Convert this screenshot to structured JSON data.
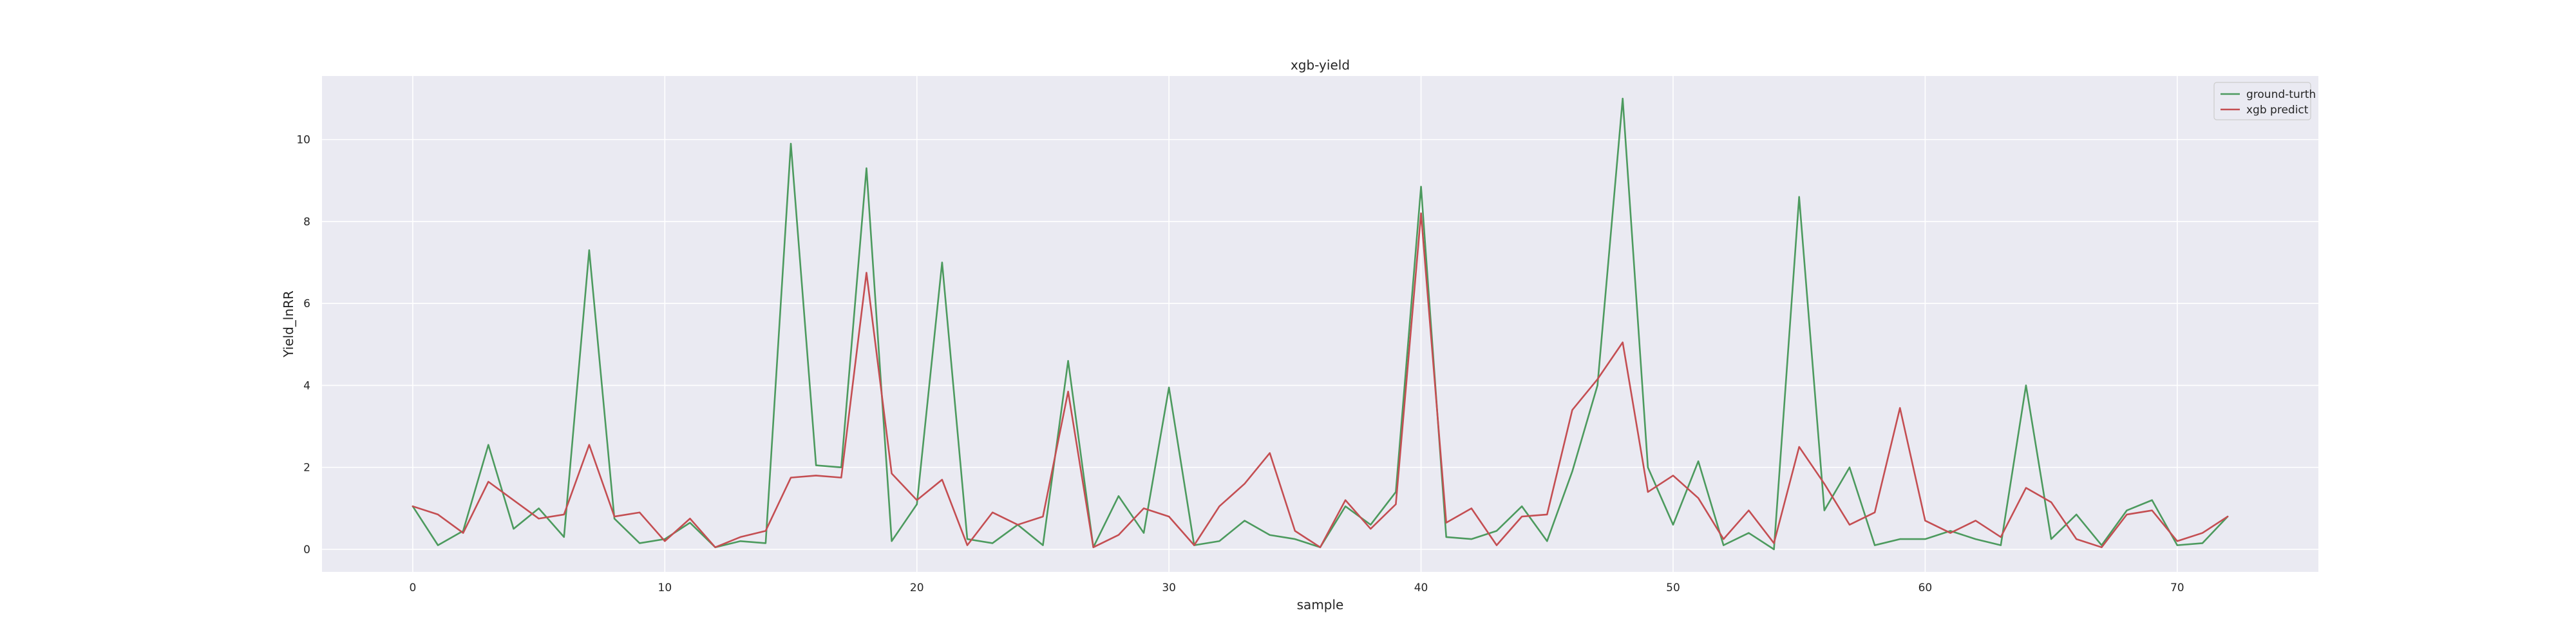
{
  "chart_data": {
    "type": "line",
    "title": "xgb-yield",
    "xlabel": "sample",
    "ylabel": "Yield_lnRR",
    "xlim": [
      -3.6,
      75.6
    ],
    "ylim": [
      -0.55,
      11.55
    ],
    "xticks": [
      0,
      10,
      20,
      30,
      40,
      50,
      60,
      70
    ],
    "yticks": [
      0,
      2,
      4,
      6,
      8,
      10
    ],
    "grid": true,
    "legend": {
      "position": "top-right"
    },
    "x": [
      0,
      1,
      2,
      3,
      4,
      5,
      6,
      7,
      8,
      9,
      10,
      11,
      12,
      13,
      14,
      15,
      16,
      17,
      18,
      19,
      20,
      21,
      22,
      23,
      24,
      25,
      26,
      27,
      28,
      29,
      30,
      31,
      32,
      33,
      34,
      35,
      36,
      37,
      38,
      39,
      40,
      41,
      42,
      43,
      44,
      45,
      46,
      47,
      48,
      49,
      50,
      51,
      52,
      53,
      54,
      55,
      56,
      57,
      58,
      59,
      60,
      61,
      62,
      63,
      64,
      65,
      66,
      67,
      68,
      69,
      70,
      71,
      72
    ],
    "series": [
      {
        "name": "ground-turth",
        "color": "#4c9a5e",
        "values": [
          1.05,
          0.1,
          0.45,
          2.55,
          0.5,
          1.0,
          0.3,
          7.3,
          0.75,
          0.15,
          0.25,
          0.65,
          0.05,
          0.2,
          0.15,
          9.9,
          2.05,
          2.0,
          9.3,
          0.2,
          1.1,
          7.0,
          0.25,
          0.15,
          0.6,
          0.1,
          4.6,
          0.05,
          1.3,
          0.4,
          3.95,
          0.1,
          0.2,
          0.7,
          0.35,
          0.25,
          0.05,
          1.05,
          0.6,
          1.4,
          8.85,
          0.3,
          0.25,
          0.45,
          1.05,
          0.2,
          1.9,
          4.0,
          11.0,
          2.0,
          0.6,
          2.15,
          0.1,
          0.4,
          0.0,
          8.6,
          0.95,
          2.0,
          0.1,
          0.25,
          0.25,
          0.45,
          0.25,
          0.1,
          4.0,
          0.25,
          0.85,
          0.1,
          0.95,
          1.2,
          0.1,
          0.15,
          0.8
        ]
      },
      {
        "name": "xgb predict",
        "color": "#c44e52",
        "values": [
          1.05,
          0.85,
          0.4,
          1.65,
          1.2,
          0.75,
          0.85,
          2.55,
          0.8,
          0.9,
          0.2,
          0.75,
          0.05,
          0.3,
          0.45,
          1.75,
          1.8,
          1.75,
          6.75,
          1.85,
          1.2,
          1.7,
          0.1,
          0.9,
          0.6,
          0.8,
          3.85,
          0.05,
          0.35,
          1.0,
          0.8,
          0.1,
          1.05,
          1.6,
          2.35,
          0.45,
          0.05,
          1.2,
          0.5,
          1.1,
          8.2,
          0.65,
          1.0,
          0.1,
          0.8,
          0.85,
          3.4,
          4.15,
          5.05,
          1.4,
          1.8,
          1.25,
          0.25,
          0.95,
          0.15,
          2.5,
          1.6,
          0.6,
          0.9,
          3.45,
          0.7,
          0.4,
          0.7,
          0.3,
          1.5,
          1.15,
          0.25,
          0.05,
          0.85,
          0.95,
          0.2,
          0.4,
          0.8
        ]
      }
    ]
  },
  "colors": {
    "plot_background": "#eaeaf2",
    "grid": "#ffffff",
    "legend_border": "#cccccc"
  }
}
